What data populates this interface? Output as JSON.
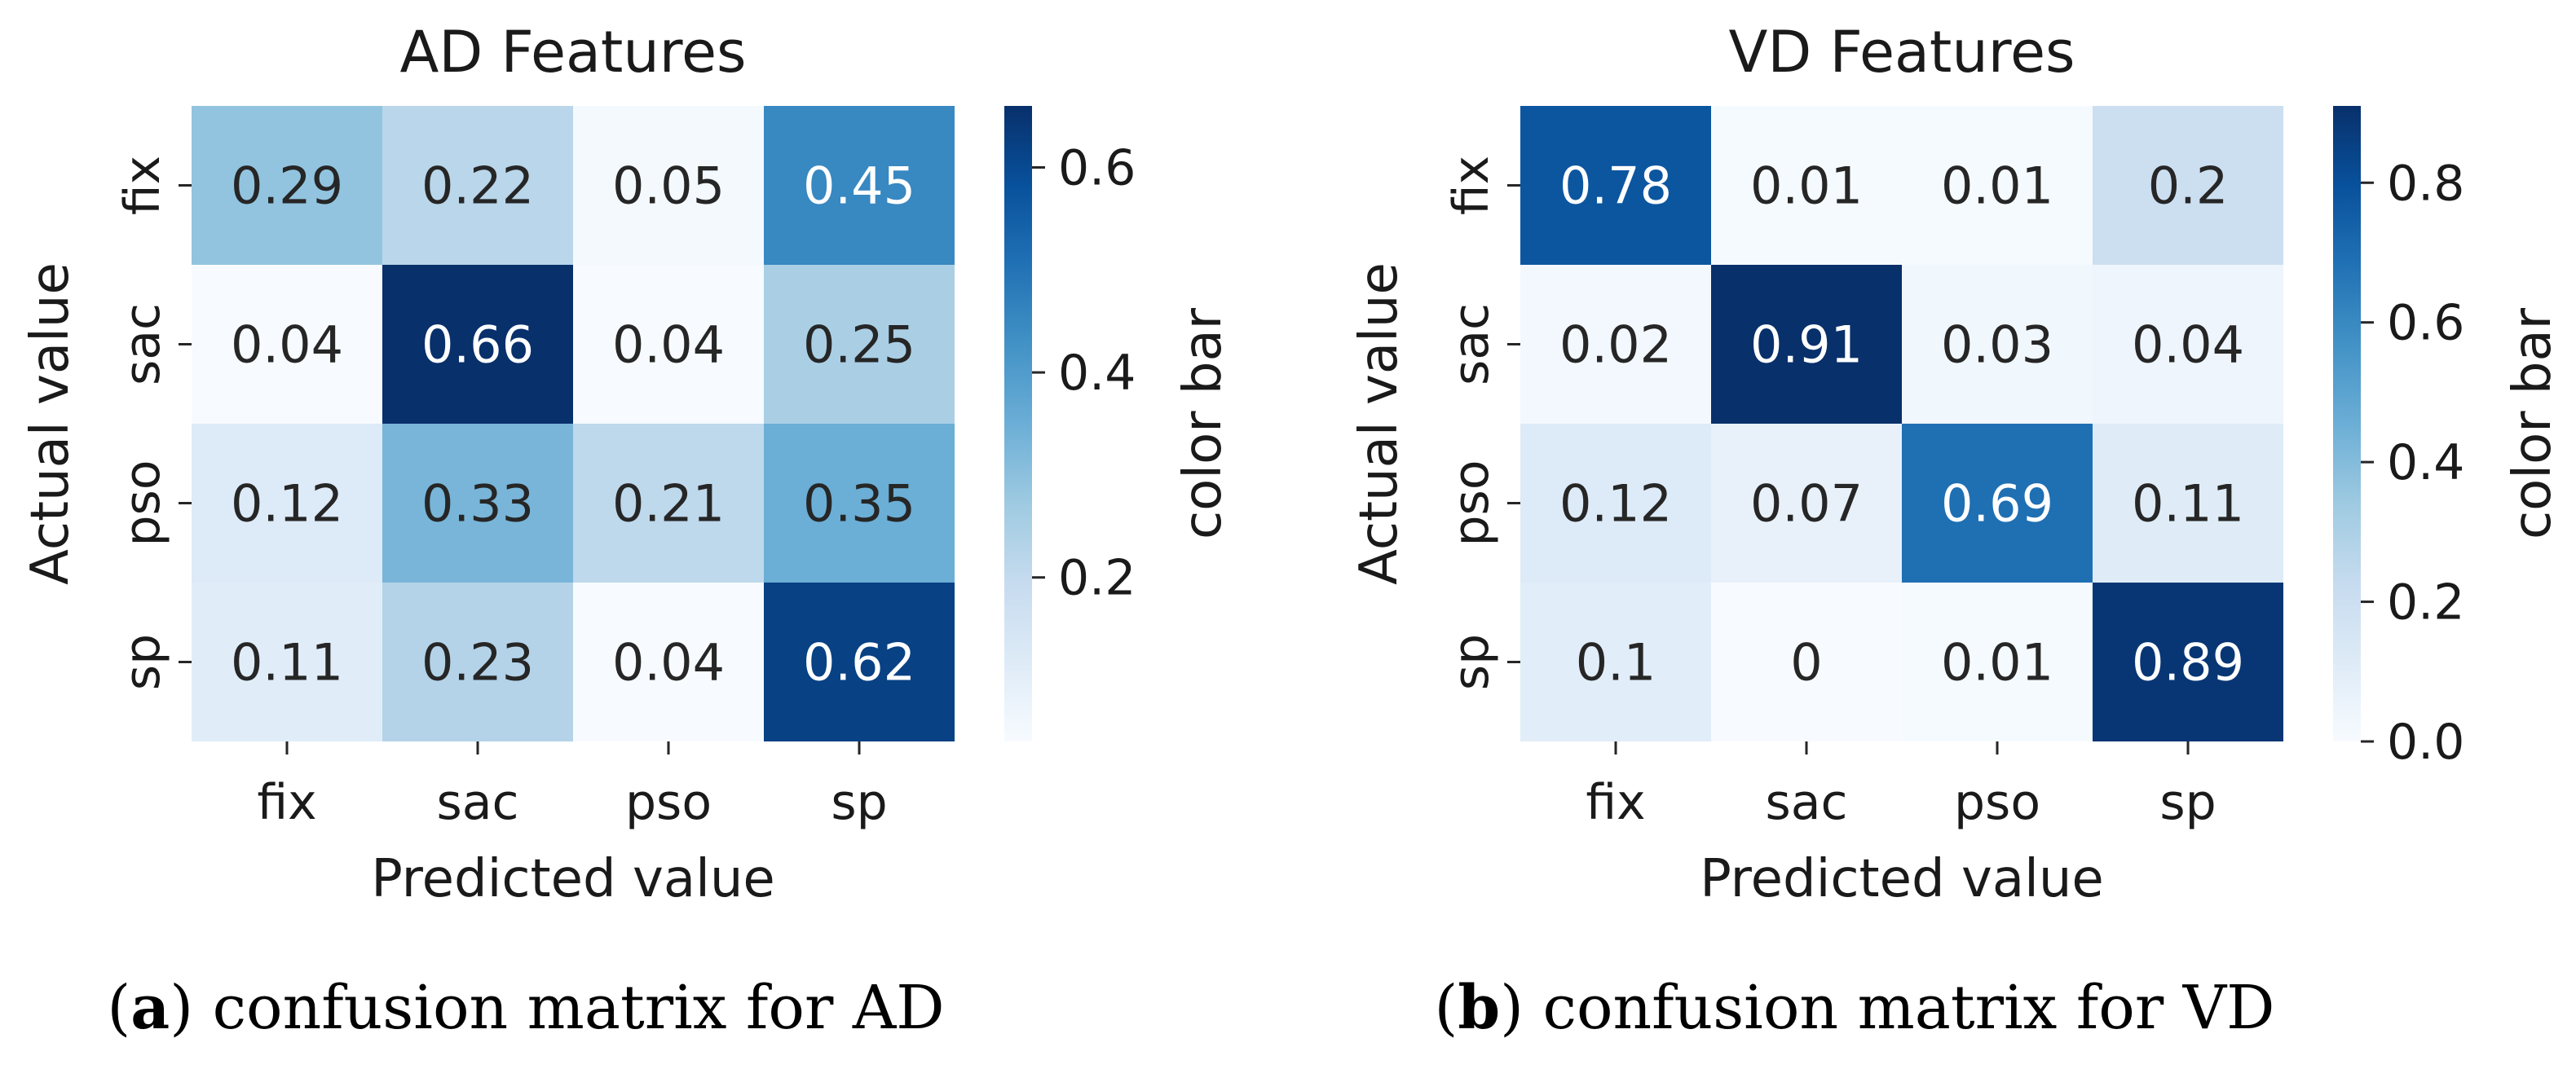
{
  "chart_data": [
    {
      "type": "heatmap",
      "title": "AD Features",
      "xlabel": "Predicted value",
      "ylabel": "Actual value",
      "x_categories": [
        "fix",
        "sac",
        "pso",
        "sp"
      ],
      "y_categories": [
        "fix",
        "sac",
        "pso",
        "sp"
      ],
      "values": [
        [
          0.29,
          0.22,
          0.05,
          0.45
        ],
        [
          0.04,
          0.66,
          0.04,
          0.25
        ],
        [
          0.12,
          0.33,
          0.21,
          0.35
        ],
        [
          0.11,
          0.23,
          0.04,
          0.62
        ]
      ],
      "value_labels": [
        [
          "0.29",
          "0.22",
          "0.05",
          "0.45"
        ],
        [
          "0.04",
          "0.66",
          "0.04",
          "0.25"
        ],
        [
          "0.12",
          "0.33",
          "0.21",
          "0.35"
        ],
        [
          "0.11",
          "0.23",
          "0.04",
          "0.62"
        ]
      ],
      "colormap": "Blues",
      "vmin": 0.04,
      "vmax": 0.66,
      "colorbar_label": "color bar",
      "colorbar_ticks": [
        0.2,
        0.4,
        0.6
      ],
      "colorbar_tick_labels": [
        "0.2",
        "0.4",
        "0.6"
      ],
      "caption_letter": "a",
      "caption_text": " confusion matrix for AD"
    },
    {
      "type": "heatmap",
      "title": "VD Features",
      "xlabel": "Predicted value",
      "ylabel": "Actual value",
      "x_categories": [
        "fix",
        "sac",
        "pso",
        "sp"
      ],
      "y_categories": [
        "fix",
        "sac",
        "pso",
        "sp"
      ],
      "values": [
        [
          0.78,
          0.01,
          0.01,
          0.2
        ],
        [
          0.02,
          0.91,
          0.03,
          0.04
        ],
        [
          0.12,
          0.07,
          0.69,
          0.11
        ],
        [
          0.1,
          0,
          0.01,
          0.89
        ]
      ],
      "value_labels": [
        [
          "0.78",
          "0.01",
          "0.01",
          "0.2"
        ],
        [
          "0.02",
          "0.91",
          "0.03",
          "0.04"
        ],
        [
          "0.12",
          "0.07",
          "0.69",
          "0.11"
        ],
        [
          "0.1",
          "0",
          "0.01",
          "0.89"
        ]
      ],
      "colormap": "Blues",
      "vmin": 0,
      "vmax": 0.91,
      "colorbar_label": "color bar",
      "colorbar_ticks": [
        0.0,
        0.2,
        0.4,
        0.6,
        0.8
      ],
      "colorbar_tick_labels": [
        "0.0",
        "0.2",
        "0.4",
        "0.6",
        "0.8"
      ],
      "caption_letter": "b",
      "caption_text": " confusion matrix for VD"
    }
  ]
}
